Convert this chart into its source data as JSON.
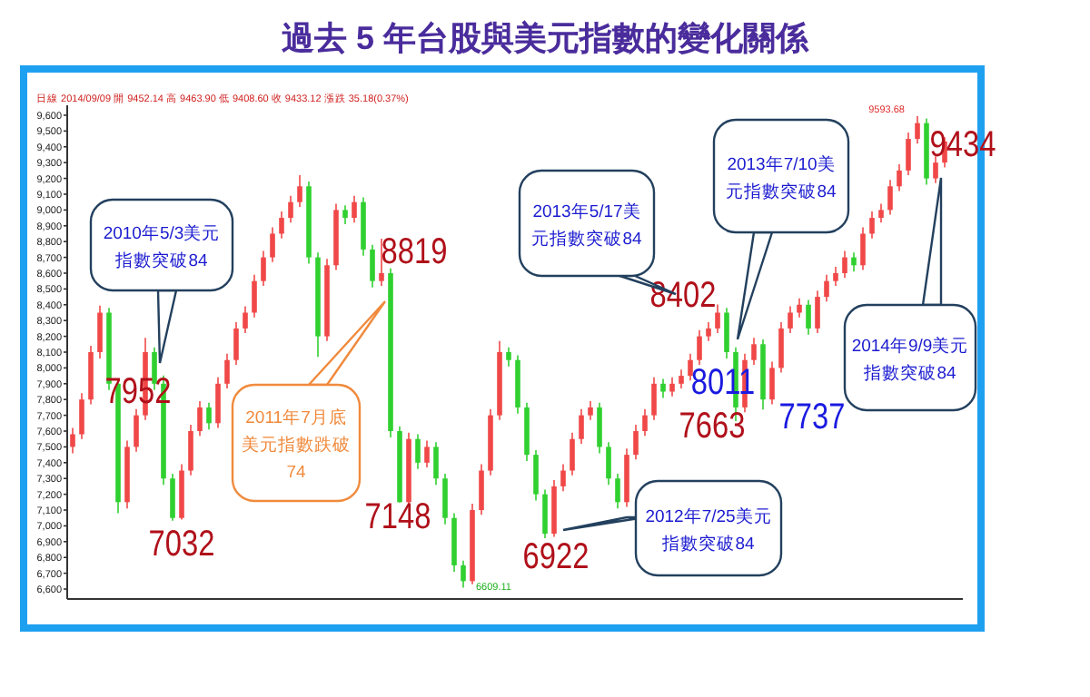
{
  "chart_data": {
    "type": "candlestick",
    "title": "過去 5 年台股與美元指數的變化關係",
    "categories": [
      null,
      null,
      null,
      null,
      null,
      null,
      null,
      null,
      null,
      null,
      null,
      null,
      null,
      null,
      null,
      null,
      null,
      null,
      null,
      null,
      null,
      null,
      null,
      null,
      null,
      null,
      null,
      null,
      null,
      null,
      null,
      null,
      null,
      null,
      null,
      null,
      null,
      null,
      null,
      null,
      null,
      null,
      null,
      null,
      null,
      null,
      null,
      null,
      null,
      null,
      null,
      null,
      null,
      null,
      null,
      null,
      null,
      null,
      null,
      null,
      null,
      null,
      null,
      null,
      null,
      null,
      null,
      null,
      null,
      null,
      null,
      null,
      null,
      null,
      null,
      null,
      null,
      null,
      null,
      null,
      null,
      null,
      null,
      null,
      null,
      null,
      null,
      null,
      null,
      null,
      null,
      null,
      null,
      null,
      null,
      null,
      null
    ],
    "ohlc": [
      [
        7500,
        7620,
        7460,
        7580
      ],
      [
        7580,
        7840,
        7550,
        7800
      ],
      [
        7800,
        8140,
        7770,
        8100
      ],
      [
        8100,
        8395,
        8060,
        8350
      ],
      [
        8350,
        8380,
        7860,
        7900
      ],
      [
        7900,
        7930,
        7080,
        7150
      ],
      [
        7150,
        7540,
        7110,
        7500
      ],
      [
        7500,
        7740,
        7470,
        7700
      ],
      [
        7700,
        8190,
        7670,
        8100
      ],
      [
        8100,
        8130,
        7860,
        7900
      ],
      [
        7900,
        7952,
        7260,
        7300
      ],
      [
        7300,
        7330,
        7032,
        7050
      ],
      [
        7050,
        7390,
        7040,
        7350
      ],
      [
        7350,
        7640,
        7320,
        7600
      ],
      [
        7600,
        7790,
        7570,
        7750
      ],
      [
        7750,
        7780,
        7610,
        7650
      ],
      [
        7650,
        7940,
        7620,
        7900
      ],
      [
        7900,
        8090,
        7870,
        8050
      ],
      [
        8050,
        8290,
        8020,
        8250
      ],
      [
        8250,
        8390,
        8220,
        8350
      ],
      [
        8350,
        8590,
        8320,
        8550
      ],
      [
        8550,
        8740,
        8520,
        8700
      ],
      [
        8700,
        8890,
        8670,
        8850
      ],
      [
        8850,
        8990,
        8820,
        8950
      ],
      [
        8950,
        9090,
        8920,
        9050
      ],
      [
        9050,
        9220,
        9020,
        9150
      ],
      [
        9150,
        9180,
        8660,
        8700
      ],
      [
        8700,
        8730,
        8070,
        8200
      ],
      [
        8200,
        8690,
        8170,
        8650
      ],
      [
        8650,
        9040,
        8620,
        9000
      ],
      [
        9000,
        9030,
        8910,
        8950
      ],
      [
        8950,
        9090,
        8920,
        9050
      ],
      [
        9050,
        9080,
        8710,
        8750
      ],
      [
        8750,
        8780,
        8510,
        8550
      ],
      [
        8550,
        8819,
        8520,
        8600
      ],
      [
        8600,
        8630,
        7560,
        7600
      ],
      [
        7600,
        7630,
        7148,
        7150
      ],
      [
        7150,
        7590,
        7140,
        7550
      ],
      [
        7550,
        7580,
        7360,
        7400
      ],
      [
        7400,
        7540,
        7370,
        7500
      ],
      [
        7500,
        7530,
        7260,
        7300
      ],
      [
        7300,
        7330,
        7010,
        7050
      ],
      [
        7050,
        7080,
        6710,
        6750
      ],
      [
        6750,
        6780,
        6609.11,
        6650
      ],
      [
        6650,
        7140,
        6630,
        7100
      ],
      [
        7100,
        7390,
        7070,
        7350
      ],
      [
        7350,
        7740,
        7320,
        7700
      ],
      [
        7700,
        8170,
        7670,
        8100
      ],
      [
        8100,
        8130,
        8010,
        8050
      ],
      [
        8050,
        8080,
        7710,
        7750
      ],
      [
        7750,
        7780,
        7410,
        7450
      ],
      [
        7450,
        7480,
        7160,
        7200
      ],
      [
        7200,
        7230,
        6922,
        6950
      ],
      [
        6950,
        7290,
        6930,
        7250
      ],
      [
        7250,
        7390,
        7220,
        7350
      ],
      [
        7350,
        7590,
        7320,
        7550
      ],
      [
        7550,
        7740,
        7520,
        7700
      ],
      [
        7700,
        7790,
        7670,
        7750
      ],
      [
        7750,
        7780,
        7460,
        7500
      ],
      [
        7500,
        7530,
        7260,
        7300
      ],
      [
        7300,
        7330,
        7110,
        7150
      ],
      [
        7150,
        7490,
        7120,
        7450
      ],
      [
        7450,
        7640,
        7420,
        7600
      ],
      [
        7600,
        7740,
        7570,
        7700
      ],
      [
        7700,
        7940,
        7670,
        7900
      ],
      [
        7900,
        7930,
        7810,
        7850
      ],
      [
        7850,
        7940,
        7820,
        7900
      ],
      [
        7900,
        7990,
        7870,
        7950
      ],
      [
        7950,
        8090,
        7920,
        8050
      ],
      [
        8050,
        8240,
        8020,
        8200
      ],
      [
        8200,
        8290,
        8170,
        8250
      ],
      [
        8250,
        8402,
        8220,
        8350
      ],
      [
        8350,
        8380,
        8060,
        8100
      ],
      [
        8100,
        8130,
        7663,
        7750
      ],
      [
        7750,
        8090,
        7720,
        8050
      ],
      [
        8050,
        8190,
        8020,
        8150
      ],
      [
        8150,
        8180,
        7737,
        7800
      ],
      [
        7800,
        8040,
        7770,
        8000
      ],
      [
        8000,
        8290,
        7970,
        8250
      ],
      [
        8250,
        8390,
        8220,
        8350
      ],
      [
        8350,
        8440,
        8320,
        8400
      ],
      [
        8400,
        8430,
        8210,
        8250
      ],
      [
        8250,
        8490,
        8220,
        8450
      ],
      [
        8450,
        8590,
        8420,
        8550
      ],
      [
        8550,
        8640,
        8520,
        8600
      ],
      [
        8600,
        8740,
        8570,
        8700
      ],
      [
        8700,
        8730,
        8610,
        8650
      ],
      [
        8650,
        8890,
        8620,
        8850
      ],
      [
        8850,
        8990,
        8820,
        8950
      ],
      [
        8950,
        9040,
        8920,
        9000
      ],
      [
        9000,
        9190,
        8970,
        9150
      ],
      [
        9150,
        9290,
        9120,
        9250
      ],
      [
        9250,
        9490,
        9220,
        9450
      ],
      [
        9450,
        9593.68,
        9420,
        9550
      ],
      [
        9550,
        9580,
        9160,
        9200
      ],
      [
        9200,
        9340,
        9170,
        9300
      ],
      [
        9300,
        9460,
        9270,
        9434
      ]
    ],
    "colors": [
      "#f04848",
      "#f04848",
      "#f04848",
      "#f04848",
      "#30d030",
      "#30d030",
      "#f04848",
      "#f04848",
      "#f04848",
      "#30d030",
      "#30d030",
      "#30d030",
      "#f04848",
      "#f04848",
      "#f04848",
      "#30d030",
      "#f04848",
      "#f04848",
      "#f04848",
      "#f04848",
      "#f04848",
      "#f04848",
      "#f04848",
      "#f04848",
      "#f04848",
      "#f04848",
      "#30d030",
      "#30d030",
      "#f04848",
      "#f04848",
      "#30d030",
      "#f04848",
      "#30d030",
      "#30d030",
      "#f04848",
      "#30d030",
      "#30d030",
      "#f04848",
      "#30d030",
      "#f04848",
      "#30d030",
      "#30d030",
      "#30d030",
      "#30d030",
      "#f04848",
      "#f04848",
      "#f04848",
      "#f04848",
      "#30d030",
      "#30d030",
      "#30d030",
      "#30d030",
      "#30d030",
      "#f04848",
      "#f04848",
      "#f04848",
      "#f04848",
      "#f04848",
      "#30d030",
      "#30d030",
      "#30d030",
      "#f04848",
      "#f04848",
      "#f04848",
      "#f04848",
      "#30d030",
      "#f04848",
      "#f04848",
      "#f04848",
      "#f04848",
      "#f04848",
      "#f04848",
      "#30d030",
      "#30d030",
      "#f04848",
      "#f04848",
      "#30d030",
      "#f04848",
      "#f04848",
      "#f04848",
      "#f04848",
      "#30d030",
      "#f04848",
      "#f04848",
      "#f04848",
      "#f04848",
      "#30d030",
      "#f04848",
      "#f04848",
      "#f04848",
      "#f04848",
      "#f04848",
      "#f04848",
      "#f04848",
      "#30d030",
      "#f04848",
      "#f04848"
    ],
    "ylim": [
      6560,
      9640
    ],
    "yticks": [
      {
        "value": 6600,
        "label": "6,600"
      },
      {
        "value": 6700,
        "label": "6,700"
      },
      {
        "value": 6800,
        "label": "6,800"
      },
      {
        "value": 6900,
        "label": "6,900"
      },
      {
        "value": 7000,
        "label": "7,000"
      },
      {
        "value": 7100,
        "label": "7,100"
      },
      {
        "value": 7200,
        "label": "7,200"
      },
      {
        "value": 7300,
        "label": "7,300"
      },
      {
        "value": 7400,
        "label": "7,400"
      },
      {
        "value": 7500,
        "label": "7,500"
      },
      {
        "value": 7600,
        "label": "7,600"
      },
      {
        "value": 7700,
        "label": "7,700"
      },
      {
        "value": 7800,
        "label": "7,800"
      },
      {
        "value": 7900,
        "label": "7,900"
      },
      {
        "value": 8000,
        "label": "8,000"
      },
      {
        "value": 8100,
        "label": "8,100"
      },
      {
        "value": 8200,
        "label": "8,200"
      },
      {
        "value": 8300,
        "label": "8,300"
      },
      {
        "value": 8400,
        "label": "8,400"
      },
      {
        "value": 8500,
        "label": "8,500"
      },
      {
        "value": 8600,
        "label": "8,600"
      },
      {
        "value": 8700,
        "label": "8,700"
      },
      {
        "value": 8800,
        "label": "8,800"
      },
      {
        "value": 8900,
        "label": "8,900"
      },
      {
        "value": 9000,
        "label": "9,000"
      },
      {
        "value": 9100,
        "label": "9,100"
      },
      {
        "value": 9200,
        "label": "9,200"
      },
      {
        "value": 9300,
        "label": "9,300"
      },
      {
        "value": 9400,
        "label": "9,400"
      },
      {
        "value": 9500,
        "label": "9,500"
      },
      {
        "value": 9600,
        "label": "9,600"
      }
    ],
    "tick_labels": "y",
    "annotations": [
      "日線 2014/09/09 開 9452.14 高 9463.90 低 9408.60 收 9433.12 漲跌 35.18(0.37%)",
      "9593.68",
      "6609.11",
      "7952",
      "7032",
      "8819",
      "7148",
      "6922",
      "8402",
      "8011",
      "7663",
      "7737",
      "9434",
      "2010年5/3美元指數突破84",
      "2011年7月底美元指數跌破74",
      "2013年5/17美元指數突破84",
      "2013年7/10美元指數突破84",
      "2012年7/25美元指數突破84",
      "2014年9/9美元指數突破84"
    ]
  }
}
